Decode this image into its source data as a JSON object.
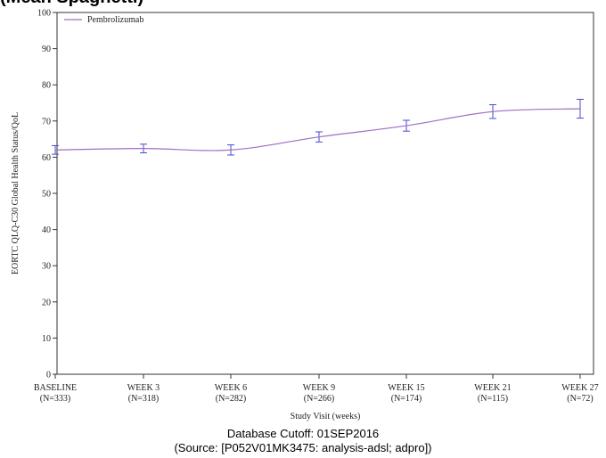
{
  "header": {
    "clipped_title": "(Mean Spaghetti)"
  },
  "footer": {
    "cutoff": "Database Cutoff: 01SEP2016",
    "source": "(Source:  [P052V01MK3475: analysis-adsl; adpro])"
  },
  "chart_data": {
    "type": "line",
    "xlabel": "Study Visit (weeks)",
    "ylabel": "EORTC QLQ-C30 Global Health Status/QoL",
    "ylim": [
      0,
      100
    ],
    "yticks": [
      0,
      10,
      20,
      30,
      40,
      50,
      60,
      70,
      80,
      90,
      100
    ],
    "categories": [
      [
        "BASELINE",
        "(N=333)"
      ],
      [
        "WEEK 3",
        "(N=318)"
      ],
      [
        "WEEK 6",
        "(N=282)"
      ],
      [
        "WEEK 9",
        "(N=266)"
      ],
      [
        "WEEK 15",
        "(N=174)"
      ],
      [
        "WEEK 21",
        "(N=115)"
      ],
      [
        "WEEK 27",
        "(N=72)"
      ]
    ],
    "legend": {
      "position": "top-left",
      "entries": [
        "Pembrolizumab"
      ]
    },
    "series": [
      {
        "name": "Pembrolizumab",
        "color": "#9b6fc4",
        "errorbar_color": "#4a4ad0",
        "values": [
          62.0,
          62.4,
          62.0,
          65.6,
          68.7,
          72.6,
          73.4
        ],
        "lower": [
          60.8,
          61.2,
          60.6,
          64.2,
          67.2,
          70.7,
          70.8
        ],
        "upper": [
          63.2,
          63.6,
          63.4,
          67.0,
          70.2,
          74.5,
          76.0
        ]
      }
    ]
  }
}
